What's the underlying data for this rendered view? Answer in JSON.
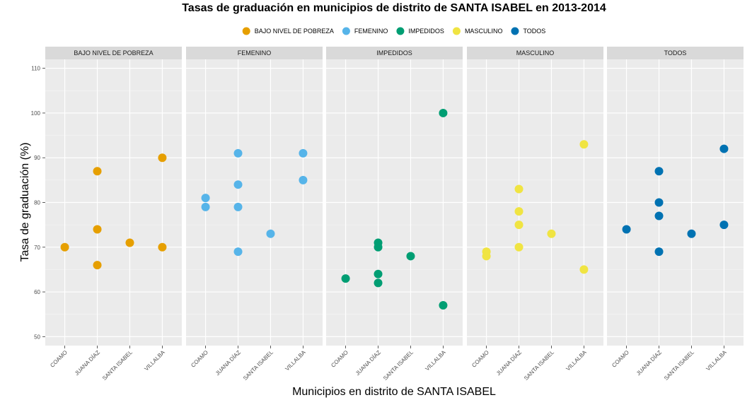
{
  "chart_data": {
    "type": "scatter",
    "title": "Tasas de graduación en municipios de distrito de SANTA ISABEL en 2013-2014",
    "xlabel": "Municipios en distrito de SANTA ISABEL",
    "ylabel": "Tasa de graduación (%)",
    "ylim": [
      48,
      112
    ],
    "yticks": [
      50,
      60,
      70,
      80,
      90,
      100,
      110
    ],
    "categories": [
      "COAMO",
      "JUANA DÍAZ",
      "SANTA ISABEL",
      "VILLALBA"
    ],
    "grid": true,
    "legend_position": "top",
    "facets": [
      "BAJO NIVEL DE POBREZA",
      "FEMENINO",
      "IMPEDIDOS",
      "MASCULINO",
      "TODOS"
    ],
    "series": [
      {
        "name": "BAJO NIVEL DE POBREZA",
        "color": "#E69F00",
        "points": [
          {
            "x": "COAMO",
            "y": 70
          },
          {
            "x": "JUANA DÍAZ",
            "y": 87
          },
          {
            "x": "JUANA DÍAZ",
            "y": 74
          },
          {
            "x": "JUANA DÍAZ",
            "y": 66
          },
          {
            "x": "SANTA ISABEL",
            "y": 71
          },
          {
            "x": "VILLALBA",
            "y": 90
          },
          {
            "x": "VILLALBA",
            "y": 70
          }
        ]
      },
      {
        "name": "FEMENINO",
        "color": "#56B4E9",
        "points": [
          {
            "x": "COAMO",
            "y": 81
          },
          {
            "x": "COAMO",
            "y": 79
          },
          {
            "x": "JUANA DÍAZ",
            "y": 91
          },
          {
            "x": "JUANA DÍAZ",
            "y": 84
          },
          {
            "x": "JUANA DÍAZ",
            "y": 79
          },
          {
            "x": "JUANA DÍAZ",
            "y": 69
          },
          {
            "x": "SANTA ISABEL",
            "y": 73
          },
          {
            "x": "VILLALBA",
            "y": 91
          },
          {
            "x": "VILLALBA",
            "y": 85
          }
        ]
      },
      {
        "name": "IMPEDIDOS",
        "color": "#009E73",
        "points": [
          {
            "x": "COAMO",
            "y": 63
          },
          {
            "x": "JUANA DÍAZ",
            "y": 71
          },
          {
            "x": "JUANA DÍAZ",
            "y": 70
          },
          {
            "x": "JUANA DÍAZ",
            "y": 64
          },
          {
            "x": "JUANA DÍAZ",
            "y": 62
          },
          {
            "x": "SANTA ISABEL",
            "y": 68
          },
          {
            "x": "VILLALBA",
            "y": 100
          },
          {
            "x": "VILLALBA",
            "y": 57
          }
        ]
      },
      {
        "name": "MASCULINO",
        "color": "#F0E442",
        "points": [
          {
            "x": "COAMO",
            "y": 69
          },
          {
            "x": "COAMO",
            "y": 68
          },
          {
            "x": "JUANA DÍAZ",
            "y": 83
          },
          {
            "x": "JUANA DÍAZ",
            "y": 78
          },
          {
            "x": "JUANA DÍAZ",
            "y": 75
          },
          {
            "x": "JUANA DÍAZ",
            "y": 70
          },
          {
            "x": "SANTA ISABEL",
            "y": 73
          },
          {
            "x": "VILLALBA",
            "y": 93
          },
          {
            "x": "VILLALBA",
            "y": 65
          }
        ]
      },
      {
        "name": "TODOS",
        "color": "#0072B2",
        "points": [
          {
            "x": "COAMO",
            "y": 74
          },
          {
            "x": "JUANA DÍAZ",
            "y": 87
          },
          {
            "x": "JUANA DÍAZ",
            "y": 80
          },
          {
            "x": "JUANA DÍAZ",
            "y": 77
          },
          {
            "x": "JUANA DÍAZ",
            "y": 69
          },
          {
            "x": "SANTA ISABEL",
            "y": 73
          },
          {
            "x": "VILLALBA",
            "y": 92
          },
          {
            "x": "VILLALBA",
            "y": 75
          }
        ]
      }
    ]
  }
}
